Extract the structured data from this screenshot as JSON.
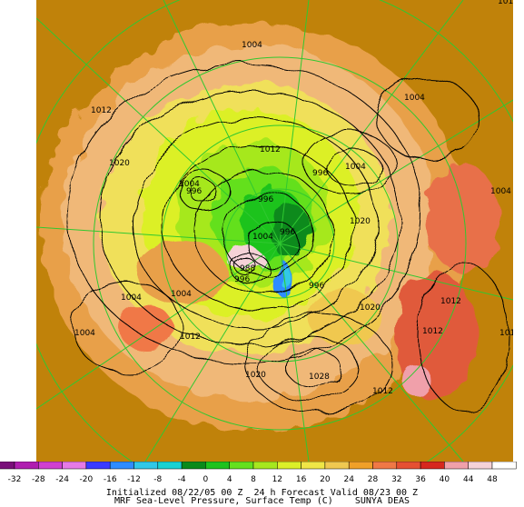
{
  "map": {
    "corner_label": "101",
    "isobar_labels": [
      {
        "text": "1004",
        "name": "isobar-label-1004-north"
      },
      {
        "text": "1012",
        "name": "isobar-label-1012-west"
      },
      {
        "text": "1020",
        "name": "isobar-label-1020-west"
      },
      {
        "text": "1004",
        "name": "isobar-label-1004-northeast"
      },
      {
        "text": "1012",
        "name": "isobar-label-1012-center"
      },
      {
        "text": "1004",
        "name": "isobar-label-1004-center-east"
      },
      {
        "text": "996",
        "name": "isobar-label-996-east"
      },
      {
        "text": "1004",
        "name": "isobar-label-1004-east-edge"
      },
      {
        "text": "1004",
        "name": "isobar-label-1004-west-low"
      },
      {
        "text": "996",
        "name": "isobar-label-996-west-low"
      },
      {
        "text": "996",
        "name": "isobar-label-996-pole"
      },
      {
        "text": "996",
        "name": "isobar-label-996-pole-2"
      },
      {
        "text": "1004",
        "name": "isobar-label-1004-pole"
      },
      {
        "text": "1020",
        "name": "isobar-label-1020-east"
      },
      {
        "text": "988",
        "name": "isobar-label-988"
      },
      {
        "text": "996",
        "name": "isobar-label-996-south"
      },
      {
        "text": "996",
        "name": "isobar-label-996-south-east"
      },
      {
        "text": "1004",
        "name": "isobar-label-1004-southwest"
      },
      {
        "text": "1004",
        "name": "isobar-label-1004-south"
      },
      {
        "text": "1004",
        "name": "isobar-label-1004-far-west"
      },
      {
        "text": "1012",
        "name": "isobar-label-1012-south"
      },
      {
        "text": "1020",
        "name": "isobar-label-1020-southeast"
      },
      {
        "text": "1012",
        "name": "isobar-label-1012-east"
      },
      {
        "text": "1012",
        "name": "isobar-label-1012-southeast"
      },
      {
        "text": "101",
        "name": "isobar-label-101-edge"
      },
      {
        "text": "1020",
        "name": "isobar-label-1020-south"
      },
      {
        "text": "1028",
        "name": "isobar-label-1028"
      },
      {
        "text": "1012",
        "name": "isobar-label-1012-south-edge"
      }
    ]
  },
  "colorbar": {
    "ticks": [
      "-32",
      "-28",
      "-24",
      "-20",
      "-16",
      "-12",
      "-8",
      "-4",
      "0",
      "4",
      "8",
      "12",
      "16",
      "20",
      "24",
      "28",
      "32",
      "36",
      "40",
      "44",
      "48"
    ],
    "colors": [
      "#7a0f7a",
      "#b01eb0",
      "#d040d0",
      "#e67ae6",
      "#3a3aff",
      "#2f8cff",
      "#30c8e8",
      "#18d2d2",
      "#0a8a1a",
      "#1ec31e",
      "#64e01e",
      "#a6e81e",
      "#dcf028",
      "#f0e646",
      "#f0c850",
      "#f0a028",
      "#f07846",
      "#e65032",
      "#d7281e",
      "#f0a0aa",
      "#f5d2d7",
      "#ffffff"
    ]
  },
  "footer": {
    "line1": "Initialized 08/22/05 00 Z  24 h Forecast Valid 08/23 00 Z",
    "line2": "MRF Sea-Level Pressure, Surface Temp (C)    SUNYA DEAS"
  }
}
